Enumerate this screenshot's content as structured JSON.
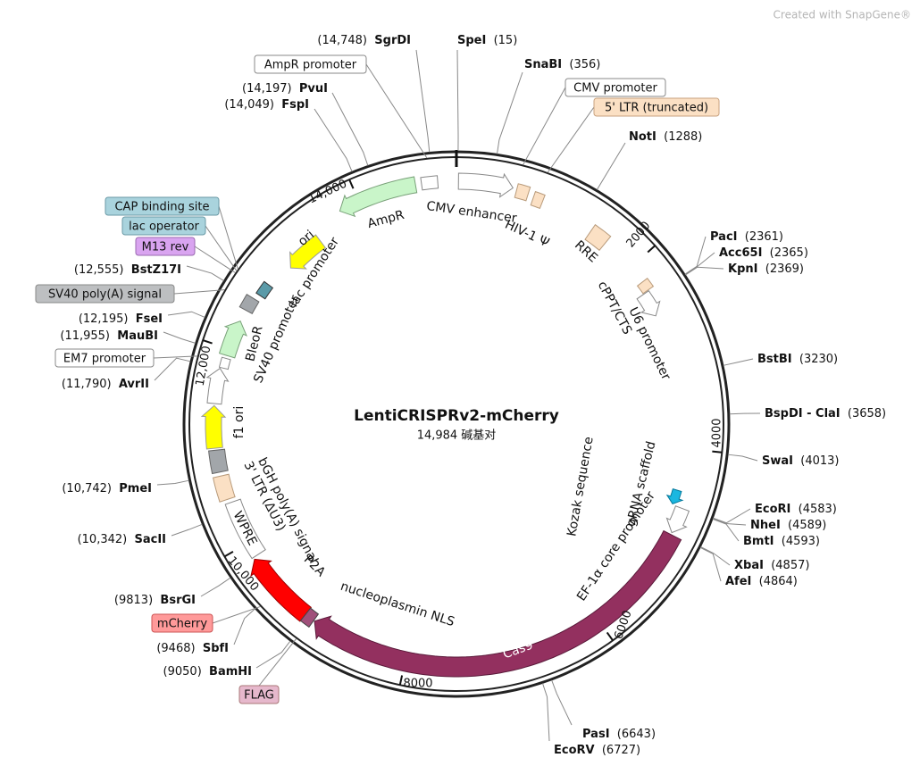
{
  "watermark": "Created with SnapGene®",
  "plasmid": {
    "name": "LentiCRISPRv2-mCherry",
    "length": "14,984 碱基对"
  },
  "sites": [
    {
      "name": "SgrDI",
      "position": "(14,748)"
    },
    {
      "name": "SpeI",
      "position": "(15)"
    },
    {
      "name": "SnaBI",
      "position": "(356)"
    },
    {
      "name": "NotI",
      "position": "(1288)"
    },
    {
      "name": "PacI",
      "position": "(2361)"
    },
    {
      "name": "Acc65I",
      "position": "(2365)"
    },
    {
      "name": "KpnI",
      "position": "(2369)"
    },
    {
      "name": "BstBI",
      "position": "(3230)"
    },
    {
      "name": "BspDI - ClaI",
      "position": "(3658)"
    },
    {
      "name": "SwaI",
      "position": "(4013)"
    },
    {
      "name": "EcoRI",
      "position": "(4583)"
    },
    {
      "name": "NheI",
      "position": "(4589)"
    },
    {
      "name": "BmtI",
      "position": "(4593)"
    },
    {
      "name": "XbaI",
      "position": "(4857)"
    },
    {
      "name": "AfeI",
      "position": "(4864)"
    },
    {
      "name": "PasI",
      "position": "(6643)"
    },
    {
      "name": "EcoRV",
      "position": "(6727)"
    },
    {
      "name": "BamHI",
      "position": "(9050)"
    },
    {
      "name": "SbfI",
      "position": "(9468)"
    },
    {
      "name": "BsrGI",
      "position": "(9813)"
    },
    {
      "name": "SacII",
      "position": "(10,342)"
    },
    {
      "name": "PmeI",
      "position": "(10,742)"
    },
    {
      "name": "AvrII",
      "position": "(11,790)"
    },
    {
      "name": "MauBI",
      "position": "(11,955)"
    },
    {
      "name": "FseI",
      "position": "(12,195)"
    },
    {
      "name": "BstZ17I",
      "position": "(12,555)"
    },
    {
      "name": "PvuI",
      "position": "(14,197)"
    },
    {
      "name": "FspI",
      "position": "(14,049)"
    }
  ],
  "feature_tags": [
    "AmpR promoter",
    "CMV promoter",
    "5' LTR (truncated)",
    "CAP binding site",
    "lac operator",
    "M13 rev",
    "SV40 poly(A) signal",
    "EM7 promoter",
    "mCherry",
    "FLAG"
  ],
  "features": [
    "CMV enhancer",
    "HIV-1 Ψ",
    "RRE",
    "cPPT/CTS",
    "U6 promoter",
    "AmpR",
    "ori",
    "lac promoter",
    "SV40 promoter",
    "BleoR",
    "f1 ori",
    "bGH poly(A) signal",
    "3' LTR (ΔU3)",
    "WPRE",
    "P2A",
    "nucleoplasmin NLS",
    "Cas9",
    "EF-1α core promoter",
    "gRNA scaffold",
    "Kozak sequence"
  ],
  "scale": [
    "2000",
    "4000",
    "6000",
    "8000",
    "10,000",
    "12,000",
    "14,000"
  ]
}
